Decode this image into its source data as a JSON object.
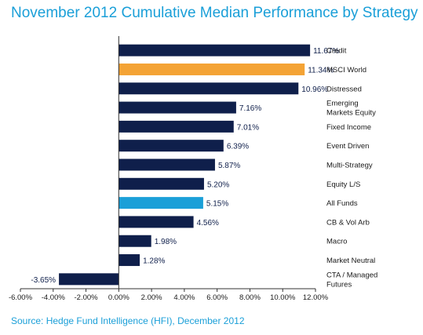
{
  "chart_data": {
    "type": "bar",
    "orientation": "horizontal",
    "title": "November 2012 Cumulative Median Performance by Strategy",
    "source": "Source: Hedge Fund Intelligence (HFI), December 2012",
    "xlim": [
      -6,
      12
    ],
    "xticks": [
      "-6.00%",
      "-4.00%",
      "-2.00%",
      "0.00%",
      "2.00%",
      "4.00%",
      "6.00%",
      "8.00%",
      "10.00%",
      "12.00%"
    ],
    "grid": false,
    "legend": "none",
    "colors": {
      "default": "#0f1f4b",
      "msci": "#f4a335",
      "all_funds": "#1a9fd8",
      "title": "#1a9fd8"
    },
    "bars": [
      {
        "category": [
          "Credit"
        ],
        "value": 11.67,
        "label": "11.67%",
        "color_key": "default"
      },
      {
        "category": [
          "MSCI World"
        ],
        "value": 11.34,
        "label": "11.34%",
        "color_key": "msci"
      },
      {
        "category": [
          "Distressed"
        ],
        "value": 10.96,
        "label": "10.96%",
        "color_key": "default"
      },
      {
        "category": [
          "Emerging",
          "Markets Equity"
        ],
        "value": 7.16,
        "label": "7.16%",
        "color_key": "default"
      },
      {
        "category": [
          "Fixed Income"
        ],
        "value": 7.01,
        "label": "7.01%",
        "color_key": "default"
      },
      {
        "category": [
          "Event Driven"
        ],
        "value": 6.39,
        "label": "6.39%",
        "color_key": "default"
      },
      {
        "category": [
          "Multi-Strategy"
        ],
        "value": 5.87,
        "label": "5.87%",
        "color_key": "default"
      },
      {
        "category": [
          "Equity L/S"
        ],
        "value": 5.2,
        "label": "5.20%",
        "color_key": "default"
      },
      {
        "category": [
          "All Funds"
        ],
        "value": 5.15,
        "label": "5.15%",
        "color_key": "all_funds"
      },
      {
        "category": [
          "CB & Vol Arb"
        ],
        "value": 4.56,
        "label": "4.56%",
        "color_key": "default"
      },
      {
        "category": [
          "Macro"
        ],
        "value": 1.98,
        "label": "1.98%",
        "color_key": "default"
      },
      {
        "category": [
          "Market Neutral"
        ],
        "value": 1.28,
        "label": "1.28%",
        "color_key": "default"
      },
      {
        "category": [
          "CTA / Managed",
          "Futures"
        ],
        "value": -3.65,
        "label": "-3.65%",
        "color_key": "default"
      }
    ]
  }
}
